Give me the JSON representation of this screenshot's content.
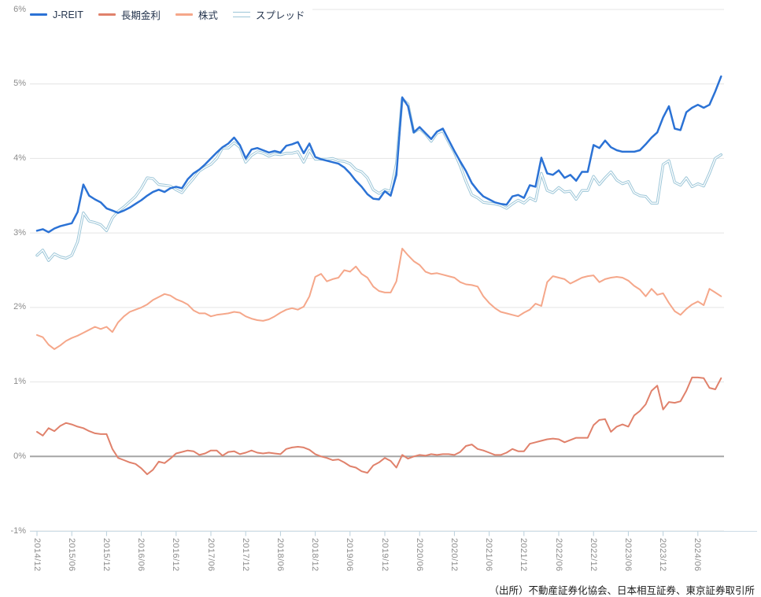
{
  "chart_data": {
    "type": "line",
    "title": "",
    "source_note": "（出所）不動産証券化協会、日本相互証券、東京証券取引所",
    "grid": {
      "line_color": "#e4e4e4",
      "zero_line_color": "#a6a6a6",
      "axis_line_color": "#ccdce6",
      "tick_color": "#b9cfdb",
      "label_color": "#8c8c8c"
    },
    "ylim": [
      -1,
      6
    ],
    "y_ticks": {
      "values": [
        6,
        5,
        4,
        3,
        2,
        1,
        0,
        -1
      ],
      "labels": [
        "6%",
        "5%",
        "4%",
        "3%",
        "2%",
        "1%",
        "0%",
        "-1%"
      ]
    },
    "x_tick_every": 6,
    "x_tick_labels": [
      "2014/12",
      "2015/06",
      "2015/12",
      "2016/06",
      "2016/12",
      "2017/06",
      "2017/12",
      "2018/06",
      "2018/12",
      "2019/06",
      "2019/12",
      "2020/06",
      "2020/12",
      "2021/06",
      "2021/12",
      "2022/06",
      "2022/12",
      "2023/06",
      "2023/12",
      "2024/06"
    ],
    "x": [
      "2014/12",
      "2015/01",
      "2015/02",
      "2015/03",
      "2015/04",
      "2015/05",
      "2015/06",
      "2015/07",
      "2015/08",
      "2015/09",
      "2015/10",
      "2015/11",
      "2015/12",
      "2016/01",
      "2016/02",
      "2016/03",
      "2016/04",
      "2016/05",
      "2016/06",
      "2016/07",
      "2016/08",
      "2016/09",
      "2016/10",
      "2016/11",
      "2016/12",
      "2017/01",
      "2017/02",
      "2017/03",
      "2017/04",
      "2017/05",
      "2017/06",
      "2017/07",
      "2017/08",
      "2017/09",
      "2017/10",
      "2017/11",
      "2017/12",
      "2018/01",
      "2018/02",
      "2018/03",
      "2018/04",
      "2018/05",
      "2018/06",
      "2018/07",
      "2018/08",
      "2018/09",
      "2018/10",
      "2018/11",
      "2018/12",
      "2019/01",
      "2019/02",
      "2019/03",
      "2019/04",
      "2019/05",
      "2019/06",
      "2019/07",
      "2019/08",
      "2019/09",
      "2019/10",
      "2019/11",
      "2019/12",
      "2020/01",
      "2020/02",
      "2020/03",
      "2020/04",
      "2020/05",
      "2020/06",
      "2020/07",
      "2020/08",
      "2020/09",
      "2020/10",
      "2020/11",
      "2020/12",
      "2021/01",
      "2021/02",
      "2021/03",
      "2021/04",
      "2021/05",
      "2021/06",
      "2021/07",
      "2021/08",
      "2021/09",
      "2021/10",
      "2021/11",
      "2021/12",
      "2022/01",
      "2022/02",
      "2022/03",
      "2022/04",
      "2022/05",
      "2022/06",
      "2022/07",
      "2022/08",
      "2022/09",
      "2022/10",
      "2022/11",
      "2022/12",
      "2023/01",
      "2023/02",
      "2023/03",
      "2023/04",
      "2023/05",
      "2023/06",
      "2023/07",
      "2023/08",
      "2023/09",
      "2023/10",
      "2023/11",
      "2023/12",
      "2024/01",
      "2024/02",
      "2024/03",
      "2024/04",
      "2024/05",
      "2024/06",
      "2024/07",
      "2024/08",
      "2024/09",
      "2024/10"
    ],
    "series": [
      {
        "name": "J-REIT",
        "color": "#2b72d5",
        "style": "solid",
        "width": 2.5,
        "values": [
          3.03,
          3.05,
          3.01,
          3.06,
          3.09,
          3.11,
          3.13,
          3.28,
          3.65,
          3.5,
          3.45,
          3.41,
          3.33,
          3.3,
          3.27,
          3.3,
          3.34,
          3.39,
          3.44,
          3.5,
          3.55,
          3.58,
          3.55,
          3.6,
          3.62,
          3.6,
          3.72,
          3.8,
          3.85,
          3.92,
          4.0,
          4.08,
          4.15,
          4.2,
          4.28,
          4.18,
          4.0,
          4.12,
          4.14,
          4.11,
          4.08,
          4.1,
          4.08,
          4.17,
          4.19,
          4.22,
          4.07,
          4.2,
          4.02,
          3.99,
          3.97,
          3.95,
          3.93,
          3.88,
          3.8,
          3.7,
          3.62,
          3.52,
          3.46,
          3.45,
          3.56,
          3.5,
          3.78,
          4.82,
          4.7,
          4.35,
          4.42,
          4.34,
          4.26,
          4.36,
          4.4,
          4.25,
          4.1,
          3.96,
          3.83,
          3.67,
          3.57,
          3.49,
          3.45,
          3.41,
          3.39,
          3.38,
          3.49,
          3.51,
          3.47,
          3.64,
          3.62,
          4.01,
          3.8,
          3.78,
          3.84,
          3.74,
          3.78,
          3.7,
          3.82,
          3.82,
          4.18,
          4.14,
          4.24,
          4.15,
          4.11,
          4.09,
          4.09,
          4.09,
          4.11,
          4.19,
          4.28,
          4.35,
          4.55,
          4.7,
          4.4,
          4.38,
          4.62,
          4.68,
          4.72,
          4.68,
          4.72,
          4.9,
          5.1
        ]
      },
      {
        "name": "長期金利",
        "color": "#e0816b",
        "style": "solid",
        "width": 2,
        "values": [
          0.33,
          0.28,
          0.38,
          0.34,
          0.41,
          0.45,
          0.43,
          0.4,
          0.38,
          0.34,
          0.31,
          0.3,
          0.3,
          0.1,
          -0.02,
          -0.05,
          -0.08,
          -0.1,
          -0.16,
          -0.24,
          -0.18,
          -0.07,
          -0.09,
          -0.03,
          0.04,
          0.06,
          0.08,
          0.07,
          0.02,
          0.04,
          0.08,
          0.08,
          0.01,
          0.06,
          0.07,
          0.03,
          0.05,
          0.08,
          0.05,
          0.04,
          0.05,
          0.04,
          0.03,
          0.1,
          0.12,
          0.13,
          0.12,
          0.09,
          0.03,
          0.0,
          -0.02,
          -0.05,
          -0.04,
          -0.08,
          -0.13,
          -0.15,
          -0.2,
          -0.22,
          -0.12,
          -0.08,
          -0.02,
          -0.06,
          -0.15,
          0.02,
          -0.03,
          0.0,
          0.02,
          0.01,
          0.03,
          0.02,
          0.03,
          0.03,
          0.02,
          0.06,
          0.14,
          0.16,
          0.1,
          0.08,
          0.05,
          0.02,
          0.02,
          0.05,
          0.1,
          0.07,
          0.07,
          0.17,
          0.19,
          0.21,
          0.23,
          0.24,
          0.23,
          0.19,
          0.22,
          0.25,
          0.25,
          0.25,
          0.42,
          0.49,
          0.5,
          0.33,
          0.4,
          0.43,
          0.4,
          0.55,
          0.61,
          0.7,
          0.88,
          0.95,
          0.63,
          0.73,
          0.72,
          0.74,
          0.88,
          1.06,
          1.06,
          1.05,
          0.92,
          0.9,
          1.05
        ]
      },
      {
        "name": "株式",
        "color": "#f5a78a",
        "style": "solid",
        "width": 2,
        "values": [
          1.63,
          1.6,
          1.5,
          1.44,
          1.49,
          1.55,
          1.59,
          1.62,
          1.66,
          1.7,
          1.74,
          1.71,
          1.74,
          1.67,
          1.8,
          1.88,
          1.94,
          1.97,
          2.0,
          2.04,
          2.1,
          2.14,
          2.18,
          2.16,
          2.11,
          2.08,
          2.04,
          1.96,
          1.92,
          1.92,
          1.88,
          1.9,
          1.91,
          1.92,
          1.94,
          1.93,
          1.88,
          1.85,
          1.83,
          1.82,
          1.84,
          1.88,
          1.93,
          1.97,
          1.99,
          1.97,
          2.01,
          2.15,
          2.41,
          2.45,
          2.35,
          2.38,
          2.4,
          2.5,
          2.48,
          2.55,
          2.45,
          2.4,
          2.28,
          2.22,
          2.2,
          2.2,
          2.35,
          2.79,
          2.7,
          2.62,
          2.57,
          2.48,
          2.45,
          2.46,
          2.44,
          2.42,
          2.4,
          2.34,
          2.31,
          2.3,
          2.28,
          2.15,
          2.06,
          1.99,
          1.94,
          1.92,
          1.9,
          1.88,
          1.93,
          1.97,
          2.05,
          2.02,
          2.34,
          2.42,
          2.4,
          2.38,
          2.32,
          2.36,
          2.4,
          2.42,
          2.43,
          2.34,
          2.38,
          2.4,
          2.41,
          2.4,
          2.36,
          2.29,
          2.24,
          2.15,
          2.25,
          2.17,
          2.19,
          2.06,
          1.95,
          1.9,
          1.98,
          2.04,
          2.08,
          2.03,
          2.25,
          2.2,
          2.15
        ]
      },
      {
        "name": "スプレッド",
        "color": "#9cc6d8",
        "style": "double",
        "width": 3.4,
        "values": [
          2.7,
          2.77,
          2.63,
          2.72,
          2.68,
          2.66,
          2.7,
          2.88,
          3.27,
          3.16,
          3.14,
          3.11,
          3.03,
          3.2,
          3.29,
          3.35,
          3.42,
          3.49,
          3.6,
          3.74,
          3.73,
          3.65,
          3.64,
          3.63,
          3.58,
          3.54,
          3.64,
          3.73,
          3.83,
          3.88,
          3.92,
          4.0,
          4.14,
          4.14,
          4.21,
          4.15,
          3.95,
          4.04,
          4.09,
          4.07,
          4.03,
          4.06,
          4.05,
          4.07,
          4.07,
          4.09,
          3.95,
          4.11,
          3.99,
          3.99,
          3.99,
          4.0,
          3.97,
          3.96,
          3.93,
          3.85,
          3.82,
          3.74,
          3.58,
          3.53,
          3.58,
          3.56,
          3.93,
          4.8,
          4.73,
          4.35,
          4.4,
          4.33,
          4.23,
          4.34,
          4.37,
          4.22,
          4.08,
          3.9,
          3.69,
          3.51,
          3.47,
          3.41,
          3.4,
          3.39,
          3.37,
          3.33,
          3.39,
          3.44,
          3.4,
          3.47,
          3.43,
          3.8,
          3.57,
          3.54,
          3.61,
          3.55,
          3.56,
          3.45,
          3.57,
          3.57,
          3.76,
          3.65,
          3.74,
          3.82,
          3.71,
          3.66,
          3.69,
          3.54,
          3.5,
          3.49,
          3.4,
          3.4,
          3.92,
          3.97,
          3.68,
          3.64,
          3.74,
          3.62,
          3.66,
          3.63,
          3.8,
          4.0,
          4.05
        ]
      }
    ]
  }
}
